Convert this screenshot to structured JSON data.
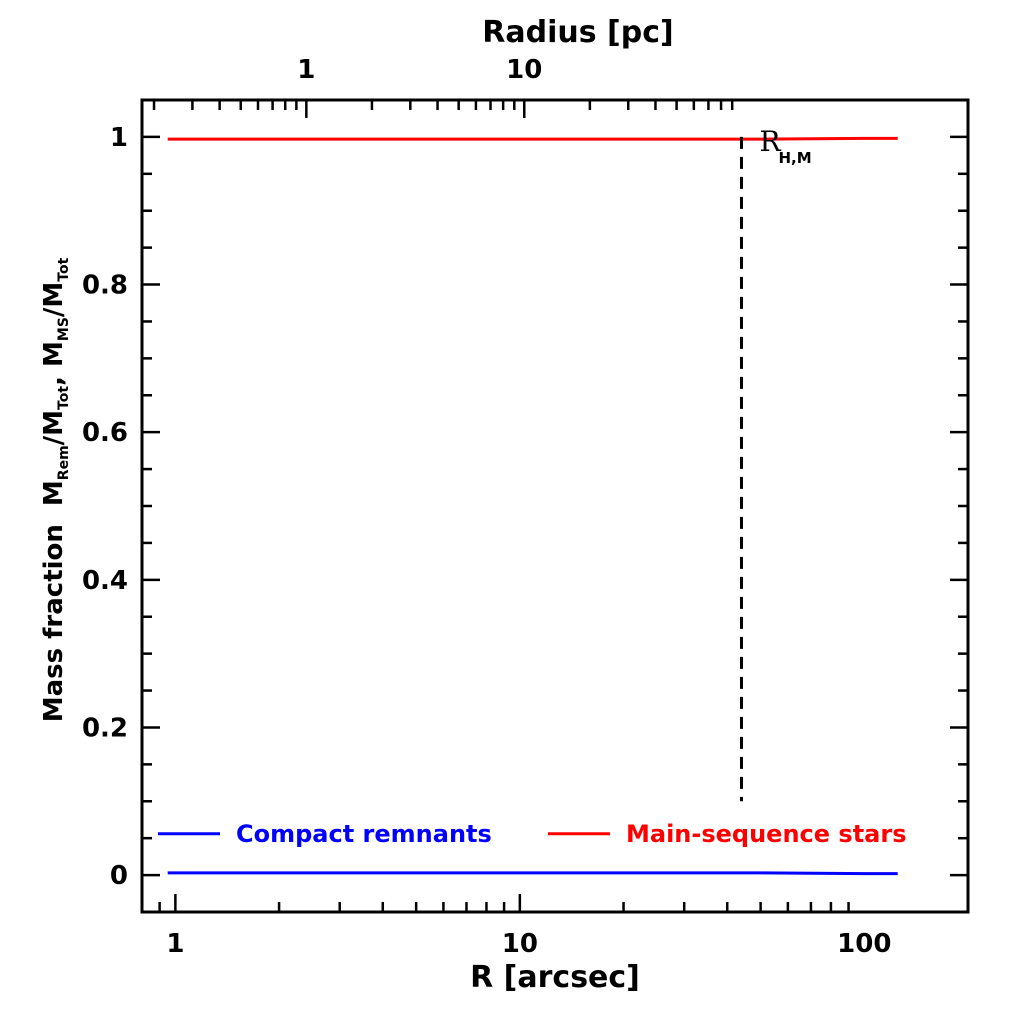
{
  "chart_data": {
    "type": "line",
    "xlabel": "R [arcsec]",
    "x2label": "Radius [pc]",
    "ylabel": "Mass fraction",
    "xscale": "log",
    "xlim": [
      0.8,
      200
    ],
    "ylim": [
      -0.05,
      1.05
    ],
    "x_ticks": [
      1,
      10,
      100
    ],
    "x_tick_labels": [
      "1",
      "10",
      "100"
    ],
    "x2_ticks_at_arcsec": [
      2.4,
      10.3
    ],
    "x2_tick_labels": [
      "1",
      "10"
    ],
    "y_ticks": [
      0,
      0.2,
      0.4,
      0.6,
      0.8,
      1
    ],
    "y_tick_labels": [
      "0",
      "0.2",
      "0.4",
      "0.6",
      "0.8",
      "1"
    ],
    "series": [
      {
        "name": "Compact remnants",
        "color": "#0000ff",
        "x": [
          0.95,
          2,
          5,
          10,
          20,
          50,
          100,
          125
        ],
        "y": [
          0.003,
          0.003,
          0.003,
          0.003,
          0.003,
          0.003,
          0.002,
          0.002
        ]
      },
      {
        "name": "Main-sequence stars",
        "color": "#ff0000",
        "x": [
          0.95,
          2,
          5,
          10,
          20,
          50,
          100,
          125
        ],
        "y": [
          0.997,
          0.997,
          0.997,
          0.997,
          0.997,
          0.997,
          0.998,
          0.998
        ]
      }
    ],
    "annotation": {
      "label": "R",
      "subscript": "H,M",
      "x": 44,
      "line_style": "dashed",
      "y_range": [
        0.1,
        1.0
      ]
    },
    "legend_placement": "bottom"
  }
}
